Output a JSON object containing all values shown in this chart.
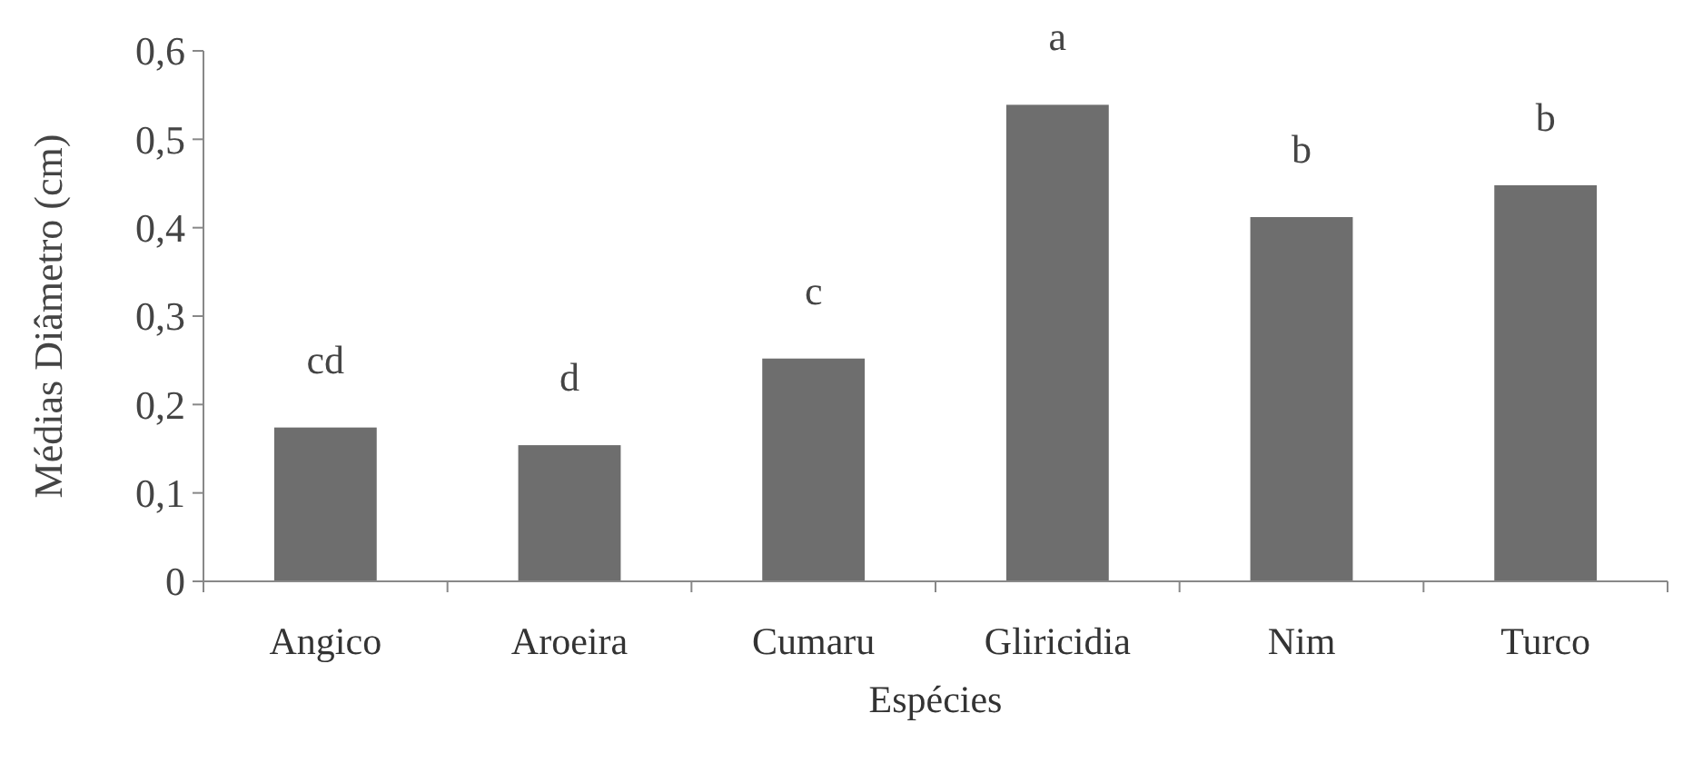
{
  "chart_data": {
    "type": "bar",
    "xlabel": "Espécies",
    "ylabel": "Médias Diâmetro (cm)",
    "categories": [
      "Angico",
      "Aroeira",
      "Cumaru",
      "Gliricidia",
      "Nim",
      "Turco"
    ],
    "values": [
      0.174,
      0.154,
      0.252,
      0.539,
      0.412,
      0.448
    ],
    "color": "#6e6e6e",
    "ylim": [
      0,
      0.6
    ],
    "yticks": [
      {
        "value": 0,
        "label": "0"
      },
      {
        "value": 0.1,
        "label": "0,1"
      },
      {
        "value": 0.2,
        "label": "0,2"
      },
      {
        "value": 0.3,
        "label": "0,3"
      },
      {
        "value": 0.4,
        "label": "0,4"
      },
      {
        "value": 0.5,
        "label": "0,5"
      },
      {
        "value": 0.6,
        "label": "0,6"
      }
    ],
    "grid": false,
    "annotations": [
      {
        "text": "cd",
        "x": "Angico",
        "y": 0.174
      },
      {
        "text": "d",
        "x": "Aroeira",
        "y": 0.154
      },
      {
        "text": "c",
        "x": "Cumaru",
        "y": 0.252
      },
      {
        "text": "a",
        "x": "Gliricidia",
        "y": 0.539
      },
      {
        "text": "b",
        "x": "Nim",
        "y": 0.412
      },
      {
        "text": "b",
        "x": "Turco",
        "y": 0.448
      }
    ]
  }
}
